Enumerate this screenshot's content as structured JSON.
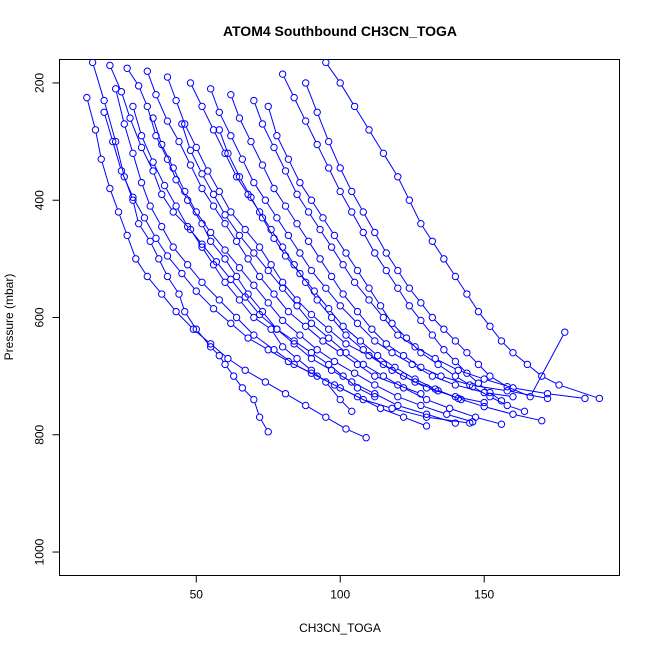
{
  "chart_data": {
    "type": "line",
    "title": "ATOM4 Southbound CH3CN_TOGA",
    "xlabel": "CH3CN_TOGA",
    "ylabel": "Pressure (mbar)",
    "xlim": [
      2.5,
      197
    ],
    "ylim": [
      1040,
      160
    ],
    "y_reversed": true,
    "x_ticks": [
      50,
      100,
      150
    ],
    "y_ticks": [
      200,
      400,
      600,
      800,
      1000
    ],
    "x_tick_labels": [
      "50",
      "100",
      "150"
    ],
    "y_tick_labels": [
      "200",
      "400",
      "600",
      "800",
      "1000"
    ],
    "grid": false,
    "legend": "none",
    "line_color": "#0000ff",
    "marker": "open-circle",
    "series": [
      {
        "x": [
          14,
          18,
          22,
          25,
          28,
          30,
          34,
          37,
          40,
          44,
          46,
          50,
          55,
          58,
          60,
          63,
          66,
          70,
          72,
          75
        ],
        "y": [
          165,
          230,
          300,
          360,
          400,
          440,
          470,
          500,
          530,
          560,
          590,
          620,
          650,
          665,
          680,
          700,
          720,
          740,
          770,
          795
        ]
      },
      {
        "x": [
          20,
          24,
          27,
          31,
          35,
          38,
          42,
          48,
          52,
          56,
          60,
          65,
          70,
          76,
          80,
          85,
          90,
          95,
          100,
          104
        ],
        "y": [
          170,
          215,
          260,
          310,
          350,
          390,
          420,
          450,
          480,
          510,
          540,
          570,
          600,
          620,
          650,
          670,
          690,
          710,
          740,
          760
        ]
      },
      {
        "x": [
          26,
          30,
          33,
          36,
          40,
          43,
          47,
          52,
          55,
          60,
          64,
          68,
          73,
          78,
          84,
          90,
          96,
          101,
          106,
          112
        ],
        "y": [
          175,
          205,
          240,
          290,
          330,
          365,
          400,
          440,
          470,
          500,
          530,
          560,
          590,
          620,
          640,
          660,
          680,
          700,
          720,
          735
        ]
      },
      {
        "x": [
          33,
          36,
          40,
          44,
          48,
          52,
          56,
          60,
          64,
          68,
          72,
          77,
          82,
          88,
          94,
          100,
          106,
          112,
          120,
          128
        ],
        "y": [
          180,
          220,
          265,
          300,
          340,
          380,
          410,
          440,
          470,
          500,
          530,
          560,
          590,
          615,
          640,
          660,
          680,
          700,
          715,
          730
        ]
      },
      {
        "x": [
          40,
          43,
          46,
          50,
          54,
          58,
          62,
          67,
          72,
          76,
          80,
          85,
          90,
          96,
          102,
          110,
          118,
          126,
          134,
          142
        ],
        "y": [
          190,
          230,
          270,
          310,
          350,
          385,
          420,
          450,
          480,
          510,
          540,
          570,
          595,
          620,
          645,
          665,
          690,
          710,
          725,
          740
        ]
      },
      {
        "x": [
          48,
          52,
          56,
          60,
          64,
          68,
          72,
          76,
          80,
          84,
          88,
          92,
          97,
          102,
          108,
          115,
          122,
          130,
          140,
          150
        ],
        "y": [
          200,
          240,
          280,
          320,
          360,
          390,
          420,
          450,
          480,
          510,
          540,
          570,
          600,
          630,
          655,
          680,
          700,
          720,
          735,
          745
        ]
      },
      {
        "x": [
          55,
          58,
          62,
          66,
          70,
          74,
          78,
          82,
          86,
          90,
          95,
          100,
          106,
          112,
          118,
          125,
          132,
          140,
          150,
          160
        ],
        "y": [
          210,
          250,
          290,
          330,
          370,
          400,
          430,
          460,
          490,
          520,
          550,
          580,
          610,
          640,
          660,
          680,
          700,
          715,
          728,
          735
        ]
      },
      {
        "x": [
          62,
          65,
          69,
          73,
          77,
          81,
          85,
          89,
          93,
          97,
          101,
          106,
          111,
          116,
          122,
          128,
          135,
          145,
          158,
          172
        ],
        "y": [
          220,
          260,
          300,
          340,
          380,
          410,
          440,
          470,
          500,
          530,
          560,
          590,
          620,
          645,
          665,
          685,
          700,
          715,
          725,
          738
        ]
      },
      {
        "x": [
          70,
          73,
          77,
          81,
          85,
          89,
          93,
          97,
          101,
          105,
          110,
          115,
          120,
          126,
          133,
          141,
          150,
          160,
          172,
          185
        ],
        "y": [
          230,
          270,
          310,
          350,
          390,
          420,
          450,
          480,
          510,
          540,
          570,
          600,
          630,
          650,
          670,
          690,
          705,
          720,
          730,
          738
        ]
      },
      {
        "x": [
          12,
          15,
          17,
          20,
          23,
          26,
          29,
          33,
          38,
          43,
          49,
          55,
          61,
          67,
          74,
          81,
          88,
          95,
          102,
          109
        ],
        "y": [
          225,
          280,
          330,
          380,
          420,
          460,
          500,
          530,
          560,
          590,
          620,
          645,
          670,
          690,
          710,
          730,
          750,
          770,
          790,
          805
        ]
      },
      {
        "x": [
          18,
          21,
          24,
          28,
          32,
          36,
          40,
          45,
          50,
          56,
          62,
          68,
          75,
          82,
          90,
          98,
          106,
          114,
          122,
          130
        ],
        "y": [
          250,
          300,
          350,
          395,
          430,
          465,
          495,
          525,
          555,
          585,
          610,
          635,
          655,
          675,
          695,
          715,
          735,
          755,
          770,
          785
        ]
      },
      {
        "x": [
          22,
          25,
          28,
          31,
          34,
          38,
          42,
          47,
          52,
          58,
          64,
          70,
          77,
          84,
          92,
          100,
          108,
          118,
          130,
          145
        ],
        "y": [
          210,
          270,
          320,
          370,
          410,
          445,
          480,
          510,
          540,
          570,
          600,
          630,
          655,
          680,
          700,
          720,
          740,
          755,
          770,
          780
        ]
      },
      {
        "x": [
          28,
          31,
          35,
          39,
          43,
          47,
          52,
          57,
          62,
          67,
          72,
          78,
          84,
          90,
          97,
          104,
          112,
          120,
          130,
          140
        ],
        "y": [
          240,
          290,
          335,
          375,
          410,
          445,
          475,
          505,
          535,
          565,
          595,
          620,
          645,
          670,
          690,
          710,
          730,
          750,
          765,
          780
        ]
      },
      {
        "x": [
          35,
          38,
          42,
          46,
          50,
          55,
          60,
          65,
          70,
          75,
          80,
          86,
          92,
          98,
          105,
          112,
          120,
          128,
          137,
          146
        ],
        "y": [
          260,
          305,
          345,
          385,
          420,
          455,
          485,
          515,
          545,
          575,
          605,
          630,
          655,
          675,
          695,
          715,
          735,
          750,
          765,
          778
        ]
      },
      {
        "x": [
          45,
          48,
          52,
          56,
          60,
          65,
          70,
          75,
          80,
          85,
          90,
          96,
          102,
          108,
          115,
          122,
          130,
          138,
          147,
          156
        ],
        "y": [
          270,
          315,
          355,
          390,
          425,
          460,
          490,
          520,
          550,
          580,
          610,
          635,
          660,
          680,
          700,
          720,
          740,
          755,
          770,
          782
        ]
      },
      {
        "x": [
          58,
          61,
          65,
          69,
          73,
          77,
          81,
          86,
          91,
          96,
          101,
          107,
          113,
          119,
          126,
          133,
          141,
          150,
          160,
          170
        ],
        "y": [
          280,
          320,
          360,
          395,
          430,
          465,
          495,
          525,
          555,
          585,
          615,
          640,
          665,
          685,
          705,
          722,
          738,
          752,
          765,
          776
        ]
      },
      {
        "x": [
          75,
          78,
          82,
          86,
          90,
          94,
          98,
          102,
          106,
          110,
          114,
          118,
          123,
          128,
          134,
          140,
          146,
          152,
          158,
          164
        ],
        "y": [
          240,
          290,
          330,
          370,
          400,
          430,
          460,
          490,
          520,
          550,
          580,
          610,
          635,
          660,
          680,
          700,
          718,
          735,
          750,
          760
        ]
      },
      {
        "x": [
          88,
          92,
          96,
          100,
          104,
          108,
          112,
          116,
          120,
          124,
          128,
          132,
          136,
          140,
          144,
          148,
          152,
          158,
          166,
          178
        ],
        "y": [
          200,
          250,
          300,
          345,
          385,
          420,
          455,
          490,
          520,
          550,
          575,
          600,
          620,
          640,
          660,
          680,
          700,
          718,
          735,
          625
        ]
      },
      {
        "x": [
          95,
          100,
          105,
          110,
          115,
          120,
          124,
          128,
          132,
          136,
          140,
          144,
          148,
          152,
          156,
          160,
          165,
          170,
          176,
          190
        ],
        "y": [
          165,
          200,
          240,
          280,
          320,
          360,
          400,
          440,
          470,
          500,
          530,
          560,
          590,
          615,
          640,
          660,
          680,
          700,
          715,
          738
        ]
      },
      {
        "x": [
          80,
          84,
          88,
          92,
          96,
          100,
          104,
          108,
          112,
          116,
          120,
          124,
          128,
          132,
          136,
          140,
          144,
          148,
          152,
          156
        ],
        "y": [
          185,
          225,
          265,
          305,
          345,
          385,
          420,
          455,
          490,
          520,
          550,
          580,
          605,
          630,
          655,
          675,
          695,
          712,
          728,
          742
        ]
      }
    ]
  }
}
